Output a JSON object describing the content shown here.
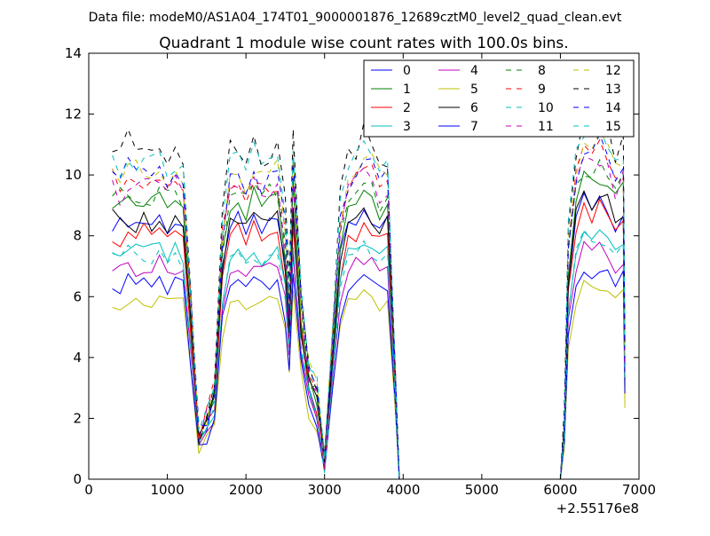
{
  "suptitle": "Data file: modeM0/AS1A04_174T01_9000001876_12689cztM0_level2_quad_clean.evt",
  "chart_data": {
    "type": "line",
    "title": "Quadrant 1 module wise count rates with 100.0s bins.",
    "xlabel": "",
    "ylabel": "",
    "x_offset_label": "+2.55176e8",
    "xlim": [
      0,
      7000
    ],
    "ylim": [
      0,
      14
    ],
    "x_ticks": [
      0,
      1000,
      2000,
      3000,
      4000,
      5000,
      6000,
      7000
    ],
    "y_ticks": [
      0,
      2,
      4,
      6,
      8,
      10,
      12,
      14
    ],
    "grid": false,
    "legend_position": "upper-right",
    "legend_columns": 4,
    "x": [
      300,
      400,
      500,
      600,
      700,
      800,
      900,
      1000,
      1100,
      1200,
      1300,
      1400,
      1500,
      1600,
      1700,
      1800,
      1900,
      2000,
      2100,
      2200,
      2300,
      2400,
      2500,
      2550,
      2600,
      2700,
      2800,
      2900,
      3000,
      3100,
      3200,
      3300,
      3400,
      3500,
      3600,
      3700,
      3800,
      3900,
      3950,
      4100,
      5000,
      6000,
      6050,
      6100,
      6200,
      6300,
      6400,
      6500,
      6600,
      6700,
      6800,
      6820
    ],
    "series": [
      {
        "name": "0",
        "color": "#0000ff",
        "style": "solid",
        "base": 1.0
      },
      {
        "name": "1",
        "color": "#008000",
        "style": "solid",
        "base": 1.075
      },
      {
        "name": "2",
        "color": "#ff0000",
        "style": "solid",
        "base": 0.955
      },
      {
        "name": "3",
        "color": "#00bfbf",
        "style": "solid",
        "base": 0.89
      },
      {
        "name": "4",
        "color": "#bf00bf",
        "style": "solid",
        "base": 0.825
      },
      {
        "name": "5",
        "color": "#bfbf00",
        "style": "solid",
        "base": 0.69
      },
      {
        "name": "6",
        "color": "#000000",
        "style": "solid",
        "base": 1.005
      },
      {
        "name": "7",
        "color": "#0000ff",
        "style": "solid",
        "base": 0.76
      },
      {
        "name": "8",
        "color": "#008000",
        "style": "dashed",
        "base": 1.11
      },
      {
        "name": "9",
        "color": "#ff0000",
        "style": "dashed",
        "base": 1.16
      },
      {
        "name": "10",
        "color": "#00bfbf",
        "style": "dashed",
        "base": 0.86
      },
      {
        "name": "11",
        "color": "#bf00bf",
        "style": "dashed",
        "base": 1.13
      },
      {
        "name": "12",
        "color": "#bfbf00",
        "style": "dashed",
        "base": 1.2
      },
      {
        "name": "13",
        "color": "#000000",
        "style": "dashed",
        "base": 1.29
      },
      {
        "name": "14",
        "color": "#0000ff",
        "style": "dashed",
        "base": 1.19
      },
      {
        "name": "15",
        "color": "#00bfbf",
        "style": "dashed",
        "base": 1.24
      }
    ],
    "profile": [
      8.5,
      8.3,
      8.6,
      8.4,
      8.5,
      8.4,
      8.6,
      8.3,
      8.5,
      8.3,
      5.0,
      1.2,
      1.8,
      2.6,
      6.8,
      8.3,
      8.5,
      8.1,
      8.6,
      8.2,
      8.4,
      8.5,
      7.0,
      5.0,
      8.8,
      5.0,
      3.0,
      2.5,
      0.5,
      4.0,
      7.2,
      8.3,
      8.5,
      8.9,
      8.6,
      8.2,
      8.3,
      3.0,
      0.0,
      0.0,
      0.0,
      0.0,
      1.5,
      6.5,
      8.5,
      9.2,
      9.0,
      9.3,
      9.0,
      8.4,
      8.8,
      3.5
    ],
    "jitter_amplitude": 0.35
  }
}
